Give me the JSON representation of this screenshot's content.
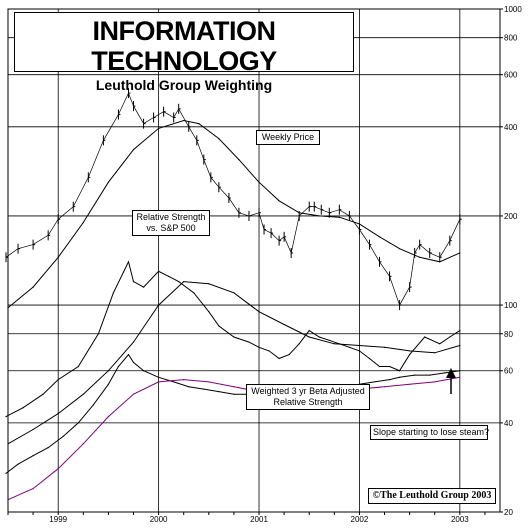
{
  "chart_data": {
    "type": "line",
    "title": "INFORMATION TECHNOLOGY",
    "subtitle": "Leuthold Group Weighting",
    "scale": "log",
    "ylim": [
      20,
      1000
    ],
    "y_ticks": [
      1000,
      800,
      600,
      400,
      200,
      100,
      80,
      60,
      40,
      20
    ],
    "y_tick_labels": [
      "1000",
      "800",
      "600",
      "400",
      "200",
      "100",
      "80",
      "60",
      "40",
      "20"
    ],
    "x_ticks": [
      1999,
      2000,
      2001,
      2002,
      2003
    ],
    "x_tick_labels": [
      "1999",
      "2000",
      "2001",
      "2002",
      "2003"
    ],
    "xlim": [
      1998.5,
      2003.4
    ],
    "grid": true,
    "annotations": {
      "weekly_price": "Weekly Price",
      "relative_strength": "Relative Strength vs. S&P 500",
      "weighted_beta": "Weighted 3 yr Beta Adjusted Relative Strength",
      "slope_note": "Slope starting to lose steam?",
      "copyright": "©The Leuthold Group 2003"
    },
    "series": [
      {
        "key": "weekly_price",
        "style": "bars",
        "color": "#000000",
        "x": [
          1998.48,
          1998.6,
          1998.75,
          1998.9,
          1999.0,
          1999.15,
          1999.3,
          1999.45,
          1999.6,
          1999.7,
          1999.75,
          1999.85,
          1999.95,
          2000.05,
          2000.15,
          2000.2,
          2000.3,
          2000.38,
          2000.45,
          2000.52,
          2000.6,
          2000.7,
          2000.8,
          2000.9,
          2001.0,
          2001.05,
          2001.12,
          2001.2,
          2001.25,
          2001.32,
          2001.4,
          2001.5,
          2001.55,
          2001.62,
          2001.7,
          2001.8,
          2001.9,
          2002.0,
          2002.1,
          2002.2,
          2002.3,
          2002.4,
          2002.5,
          2002.55,
          2002.6,
          2002.7,
          2002.8,
          2002.9,
          2003.0
        ],
        "values": [
          145,
          155,
          160,
          172,
          195,
          215,
          270,
          360,
          440,
          520,
          470,
          410,
          430,
          450,
          430,
          460,
          400,
          360,
          310,
          270,
          250,
          230,
          205,
          200,
          205,
          180,
          175,
          165,
          170,
          150,
          200,
          215,
          215,
          210,
          205,
          210,
          200,
          180,
          160,
          140,
          125,
          100,
          115,
          150,
          160,
          150,
          145,
          165,
          195
        ]
      },
      {
        "key": "price_moving_average",
        "style": "line",
        "color": "#000000",
        "x": [
          1998.5,
          1998.75,
          1999.0,
          1999.25,
          1999.5,
          1999.75,
          2000.0,
          2000.25,
          2000.4,
          2000.6,
          2000.8,
          2001.0,
          2001.2,
          2001.4,
          2001.6,
          2001.8,
          2002.0,
          2002.2,
          2002.4,
          2002.6,
          2002.8,
          2003.0
        ],
        "values": [
          98,
          115,
          145,
          190,
          260,
          335,
          395,
          420,
          410,
          365,
          310,
          260,
          225,
          205,
          200,
          198,
          188,
          170,
          155,
          145,
          140,
          150
        ]
      },
      {
        "key": "relative_strength",
        "style": "line",
        "color": "#000000",
        "x": [
          1998.48,
          1998.65,
          1998.85,
          1999.0,
          1999.2,
          1999.4,
          1999.55,
          1999.7,
          1999.75,
          1999.85,
          2000.0,
          2000.1,
          2000.2,
          2000.35,
          2000.5,
          2000.6,
          2000.75,
          2000.9,
          2001.0,
          2001.1,
          2001.2,
          2001.3,
          2001.4,
          2001.5,
          2001.6,
          2001.7,
          2001.8,
          2001.9,
          2002.0,
          2002.1,
          2002.2,
          2002.3,
          2002.4,
          2002.5,
          2002.65,
          2002.8,
          2002.9,
          2003.0
        ],
        "values": [
          42,
          45,
          50,
          56,
          62,
          80,
          110,
          140,
          120,
          115,
          130,
          125,
          120,
          110,
          95,
          85,
          78,
          75,
          72,
          70,
          66,
          68,
          74,
          82,
          78,
          76,
          74,
          72,
          70,
          66,
          62,
          62,
          60,
          68,
          78,
          74,
          78,
          82
        ]
      },
      {
        "key": "relative_strength_moving_average",
        "style": "line",
        "color": "#000000",
        "x": [
          1998.5,
          1998.75,
          1999.0,
          1999.25,
          1999.5,
          1999.75,
          2000.0,
          2000.25,
          2000.5,
          2000.75,
          2001.0,
          2001.25,
          2001.5,
          2001.75,
          2002.0,
          2002.25,
          2002.5,
          2002.75,
          2003.0
        ],
        "values": [
          34,
          38,
          43,
          50,
          60,
          75,
          100,
          120,
          118,
          110,
          95,
          86,
          78,
          74,
          73,
          72,
          70,
          69,
          73
        ]
      },
      {
        "key": "weighted_beta_adjusted_rs",
        "style": "line",
        "color": "#000000",
        "x": [
          1998.48,
          1998.6,
          1998.75,
          1998.9,
          1999.05,
          1999.2,
          1999.35,
          1999.5,
          1999.6,
          1999.7,
          1999.75,
          1999.85,
          2000.0,
          2000.15,
          2000.3,
          2000.45,
          2000.6,
          2000.75,
          2000.9,
          2001.0,
          2001.15,
          2001.3,
          2001.45,
          2001.6,
          2001.75,
          2001.9,
          2002.0,
          2002.15,
          2002.3,
          2002.4,
          2002.55,
          2002.7,
          2002.85,
          2003.0
        ],
        "values": [
          27,
          29,
          31,
          33,
          36,
          40,
          46,
          54,
          62,
          68,
          64,
          60,
          57,
          55,
          53,
          52,
          51,
          50,
          50,
          50,
          51,
          52,
          52,
          53,
          53,
          53,
          54,
          55,
          56,
          57,
          58,
          58,
          59,
          60
        ]
      },
      {
        "key": "weighted_beta_adjusted_rs_moving_average",
        "style": "line",
        "color": "#800080",
        "x": [
          1998.5,
          1998.75,
          1999.0,
          1999.25,
          1999.5,
          1999.75,
          2000.0,
          2000.25,
          2000.5,
          2000.75,
          2001.0,
          2001.25,
          2001.5,
          2001.75,
          2002.0,
          2002.25,
          2002.5,
          2002.75,
          2003.0
        ],
        "values": [
          22,
          24,
          28,
          34,
          42,
          50,
          55,
          56,
          55,
          53,
          51,
          50,
          50,
          51,
          52,
          53,
          54,
          55,
          57
        ]
      }
    ]
  }
}
